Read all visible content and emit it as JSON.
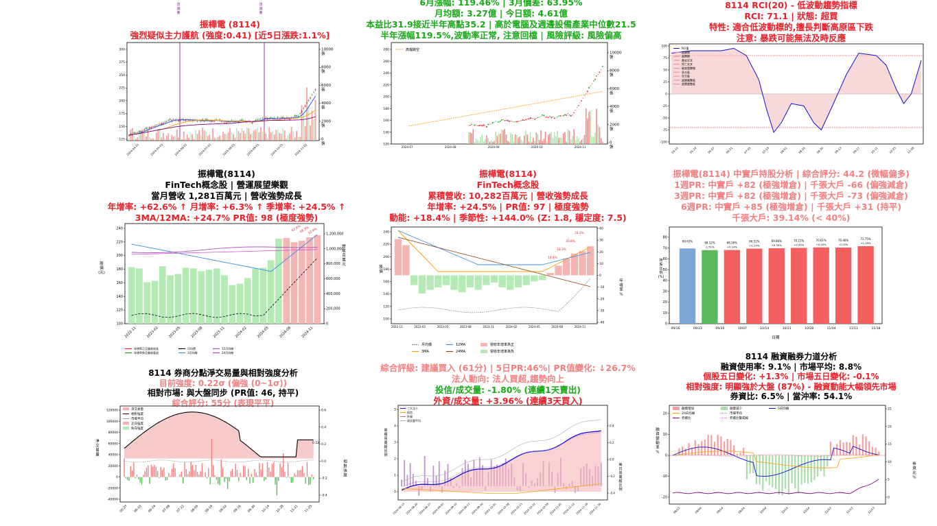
{
  "colors": {
    "red": "#e8202a",
    "green": "#18a818",
    "purple": "#800080",
    "pink": "#f28a8a",
    "lgreen": "#9be39b",
    "blue": "#1f77b4",
    "orange": "#ff9d0a"
  },
  "panels": {
    "p1": {
      "marker_labels": [
        "法\n說\n會",
        "法\n說\n會"
      ],
      "title": [
        "振樺電 (8114)",
        "強烈疑似主力護航 (強度:0.41) [近5日漲跌:1.1%]"
      ],
      "y_ticks": [
        "125",
        "150",
        "175",
        "200",
        "225",
        "250",
        "275",
        "300"
      ],
      "y2_ticks": [
        "0\n張",
        "2000\n張",
        "4000\n張",
        "6000\n張",
        "8000\n張",
        "10000\n張"
      ],
      "x_ticks": [
        "2024-04-01",
        "2024-05-01",
        "2024-06-01",
        "2024-07-01",
        "2024-08-01",
        "2024-09-01",
        "2024-10-01",
        "2024-11-01"
      ]
    },
    "p2": {
      "title": [
        "6月漲幅: 119.46% | 3月價差: 63.95%",
        "月均額: 3.27億 | 今日額: 4.61億",
        "本益比31.9接近半年高點35.2 | 高於電腦及週邊設備產業中位數21.5",
        "半年漲幅119.5%,波動率正常, 注意回檔 | 風險評級: 風險偏高"
      ],
      "legend": [
        "高檔跳空"
      ],
      "y_ticks": [
        "120",
        "140",
        "160",
        "180",
        "200",
        "220",
        "240",
        "260",
        "280"
      ],
      "y2_ticks": [
        "0\n張",
        "2000\n張",
        "4000\n張",
        "6000\n張",
        "8000\n張",
        "10000\n張"
      ],
      "x_ticks": [
        "2024-07",
        "2024-08",
        "2024-09",
        "2024-10",
        "2024-11"
      ]
    },
    "p3": {
      "title": [
        "8114 RCI(20) - 低波動趨勢指標",
        "RCI: 71.1 | 狀態: 超買",
        "特性: 適合低波動標的,擅長判斷高原區下跌",
        "注意: 暴跌可能無法及時反應"
      ],
      "legend": [
        "RCI值",
        "超買線",
        "超賣線",
        "黃金交叉",
        "死亡交叉",
        "破底盤整線",
        "多方區",
        "空方區",
        "超買盤整區",
        "超賣盤整區"
      ],
      "y_ticks": [
        "-100",
        "-75",
        "-50",
        "-25",
        "0",
        "25",
        "50",
        "75",
        "100"
      ],
      "x_ticks": [
        "05-10",
        "05-24",
        "06-07",
        "06-21",
        "07-05",
        "07-19",
        "08-02",
        "08-16",
        "08-30",
        "09-13",
        "09-27",
        "10-11",
        "10-25",
        "11-08"
      ]
    },
    "p4": {
      "title": [
        "振樺電(8114)",
        "FinTech概念股 | 營運展望樂觀",
        "當月營收 1,281百萬元 | 營收強勢成長"
      ],
      "stats": "年增率: +62.6% ↑ 月增率: +6.3% ↑ 季增率: +24.5% ↑",
      "stats2": "3MA/12MA: +24.7% PR值: 98 (極度強勢)",
      "y_label": "股\n價\n(元)",
      "y2_label": "營\n收\n百\n萬\n元",
      "y_ticks": [
        "100",
        "120",
        "140",
        "160",
        "180",
        "200",
        "220",
        "240"
      ],
      "y2_ticks": [
        "0",
        "200,000",
        "400,000",
        "600,000",
        "800,000",
        "1,000,000",
        "1,200,000"
      ],
      "x_ticks": [
        "2022-11",
        "2023-02",
        "2023-05",
        "2023-08",
        "2023-11",
        "2024-02",
        "2024-05",
        "2024-08",
        "2024-11"
      ],
      "legend": [
        "年增率正且營收成長",
        "年增率負且營收衰退",
        "月均價",
        "3月均線",
        "12月均線",
        "24月均線"
      ],
      "tags": [
        "62.6%",
        "48.3%",
        "33.9%"
      ]
    },
    "p5": {
      "title": [
        "振樺電(8114)",
        "FinTech概念股",
        "累積營收: 10,282百萬元 | 營收強勢成長",
        "年增率: +24.5% | PR值: 97 | 極度強勢",
        "動能: +18.4% | 季節性: +144.0% (Z: 1.8, 穩定度: 7.5)"
      ],
      "y_label": "股\n價",
      "y2_label": "年\n增\n率\n%",
      "y_ticks": [
        "100",
        "120",
        "140",
        "160",
        "180",
        "200",
        "220",
        "240"
      ],
      "y2_ticks": [
        "-40",
        "-30",
        "-20",
        "-10",
        "0",
        "10",
        "20",
        "30",
        "40"
      ],
      "x_ticks": [
        "2022-11",
        "2023-02",
        "2023-05",
        "2023-08",
        "2023-11",
        "2024-02",
        "2024-05",
        "2024-08",
        "2024-11"
      ],
      "legend": [
        "月均價",
        "3MA",
        "12MA",
        "24MA",
        "營收年增率為正",
        "營收年增率為負"
      ],
      "tags": [
        "14.4%",
        "18.3%",
        "20.8%",
        "24.5%"
      ]
    },
    "p6": {
      "title": [
        "振樺電(8114) 中實戶持股分析 | 綜合評分: 44.2 (微幅偏多)",
        "1週PR: 中實戶 +82 (極強增倉) | 千張大戶 -66 (偏強減倉)",
        "3週PR: 中實戶 +82 (極強增倉) | 千張大戶 -73 (偏強減倉)",
        "6週PR: 中實戶 +85 (極強增倉) | 千張大戶 +31 (持平)",
        "千張大戶: 39.14% (< 40%)"
      ],
      "y_label": "持\n股\n比\n例\n(%)",
      "x_label": "日期",
      "y_ticks": [
        "0",
        "10",
        "20",
        "30",
        "40",
        "50",
        "60",
        "70",
        "80"
      ],
      "x_ticks": [
        "09/16",
        "09/23",
        "09/30",
        "10/07",
        "10/14",
        "10/21",
        "10/28",
        "11/04",
        "11/11",
        "11/18"
      ],
      "bar_labels": [
        "69.63%",
        "68.12%",
        "68.26%",
        "69.51%",
        "69.86%",
        "70.21%",
        "70.61%",
        "70.46%",
        "71.75%"
      ],
      "bar_changes": [
        "",
        "-1.51%",
        "+0.14%",
        "+1.25%",
        "+0.35%",
        "+0.35%",
        "+0.40%",
        "-0.15%",
        "+1.29%"
      ]
    },
    "p7": {
      "title": [
        "8114 券商分點淨交易量與相對強度分析",
        "目前強度: 0.22σ (偏強 (0~1σ))",
        "相對市場: 與大盤同步 (PR值: 46, 持平)",
        "綜合評分: 55分 (表現平平)"
      ],
      "legend": [
        "淨交易量",
        "相對強度",
        "市場平均",
        "正向強度",
        "負向強度"
      ],
      "y_label": "淨\n交\n易\n量",
      "y2_label": "相\n對\n強\n度",
      "y_ticks": [
        "-40000",
        "-20000",
        "0",
        "20000",
        "40000",
        "60000",
        "80000",
        "100000",
        "120000"
      ],
      "y2_ticks": [
        "-0.4",
        "-0.2",
        "0.0",
        "0.2",
        "0.4",
        "0.6"
      ],
      "x_ticks": [
        "05-27",
        "06-10",
        "06-24",
        "07-08",
        "07-22",
        "08-05",
        "08-19",
        "09-02",
        "09-16",
        "09-30",
        "10-14",
        "10-28",
        "11-11",
        "11-25"
      ],
      "end_label": "0.22"
    },
    "p8": {
      "title": [
        "綜合評級: 建議買入 (61分) | 5日PR:46%| PR值變化: ↓26.7%",
        "法人動向: 法人買超,趨勢向上",
        "投信/成交量: -1.80% (連續1天賣出)",
        "外資/成交量: +3.96% (連續3天買入)"
      ],
      "legend": [
        "三大法人",
        "投信",
        "外資",
        "成交量平均"
      ],
      "y_label": "累\n積\n買\n賣\n超\n比\n例",
      "y2_label": "每\n日\n買\n賣\n超\n比\n例",
      "y_ticks": [
        "0",
        "1",
        "2",
        "3",
        "4",
        "5"
      ],
      "y2_ticks": [
        "-0.4",
        "-0.2",
        "0.0",
        "0.2",
        "0.4"
      ],
      "x_ticks": [
        "2024-08-13",
        "2024-08-20",
        "2024-08-27",
        "2024-09-03",
        "2024-09-10",
        "2024-09-17",
        "2024-09-24",
        "2024-10-01",
        "2024-10-08",
        "2024-10-15",
        "2024-10-22",
        "2024-10-29",
        "2024-11-05",
        "2024-11-12",
        "2024-11-19",
        "2024-11-26"
      ]
    },
    "p9": {
      "title": [
        "8114 融資融券力道分析",
        "融資使用率: 9.1% | 市場平均: 8.8%",
        "個股五日變化: +1.3% | 市場五日變化: -0.1%",
        "相對強度: 明顯強於大盤 (87%) - 融資動能大幅領先市場",
        "券資比: 6.5% | 當沖率: 54.1%"
      ],
      "legend": [
        "融資增加",
        "20日均線",
        "券資比",
        "融資減少",
        "市場平均",
        "券資比警戒線",
        "5日均線"
      ],
      "y_label": "融\n資\n變\n動\n率\n%",
      "y2_label": "券\n資\n比\n%",
      "y_ticks": [
        "-20",
        "-10",
        "0",
        "10",
        "20"
      ],
      "y2_ticks": [
        "0",
        "5",
        "10",
        "15",
        "20",
        "25"
      ],
      "x_ticks": [
        "08/23",
        "09/04",
        "09/14",
        "09/24",
        "10/04",
        "10/14",
        "10/24",
        "11/03",
        "11/13",
        "11/23"
      ]
    }
  }
}
